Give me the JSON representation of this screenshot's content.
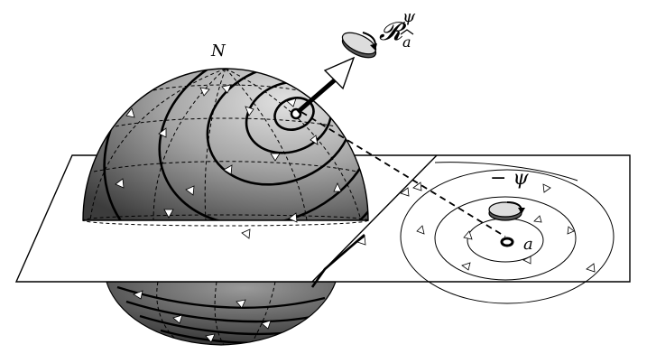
{
  "labels": {
    "north": "N",
    "rotation_symbol": "𝓡",
    "rotation_sup": "ψ",
    "rotation_sub": "a",
    "angle": "− ψ",
    "point": "a"
  },
  "colors": {
    "ink": "#000000",
    "paper": "#ffffff",
    "sphere_light": "#d6d6d6",
    "sphere_mid": "#8a8a8a",
    "sphere_dark": "#3a3a3a"
  },
  "icons": [
    "rotation-axis-arrow-icon",
    "rotation-disk-icon",
    "angle-disk-icon",
    "flow-arrowhead-icon"
  ]
}
